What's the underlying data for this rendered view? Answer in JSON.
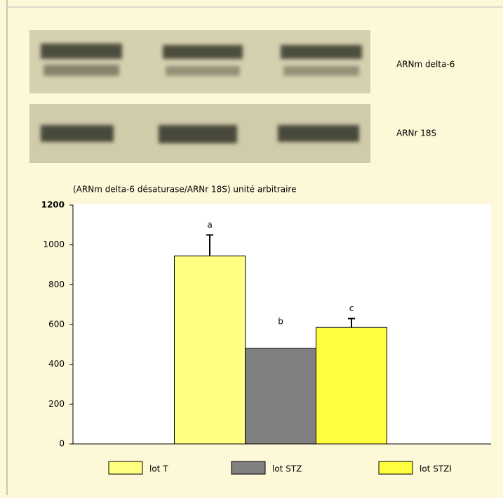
{
  "blot_labels": [
    "ARNm delta-6",
    "ARNr 18S"
  ],
  "chart_data": {
    "type": "bar",
    "y_label": "(ARNm delta-6 désaturase/ARNr 18S) unité arbitraire",
    "categories": [
      "lot T",
      "lot STZ",
      "lot STZI"
    ],
    "values": [
      945,
      480,
      585
    ],
    "errors": [
      105,
      null,
      45
    ],
    "annotations": [
      "a",
      "b",
      "c"
    ],
    "colors": [
      "#ffff80",
      "#808080",
      "#ffff40"
    ],
    "ylim": [
      0,
      1200
    ],
    "yticks": [
      0,
      200,
      400,
      600,
      800,
      1000,
      1200
    ]
  }
}
